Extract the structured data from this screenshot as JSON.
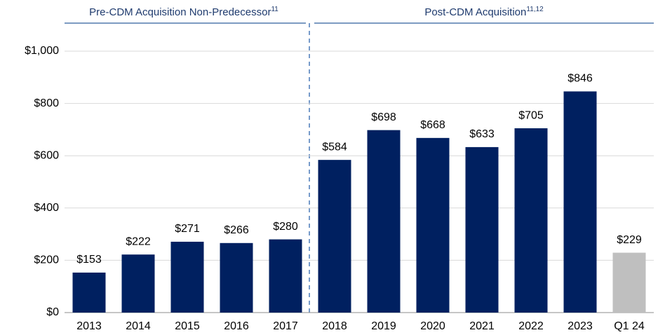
{
  "chart_data": {
    "type": "bar",
    "categories": [
      "2013",
      "2014",
      "2015",
      "2016",
      "2017",
      "2018",
      "2019",
      "2020",
      "2021",
      "2022",
      "2023",
      "Q1 24"
    ],
    "values": [
      153,
      222,
      271,
      266,
      280,
      584,
      698,
      668,
      633,
      705,
      846,
      229
    ],
    "value_labels": [
      "$153",
      "$222",
      "$271",
      "$266",
      "$280",
      "$584",
      "$698",
      "$668",
      "$633",
      "$705",
      "$846",
      "$229"
    ],
    "colors": [
      "#002060",
      "#002060",
      "#002060",
      "#002060",
      "#002060",
      "#002060",
      "#002060",
      "#002060",
      "#002060",
      "#002060",
      "#002060",
      "#bfbfbf"
    ],
    "ylim": [
      0,
      1100
    ],
    "yticks": [
      {
        "value": 0,
        "label": "$0"
      },
      {
        "value": 200,
        "label": "$200"
      },
      {
        "value": 400,
        "label": "$400"
      },
      {
        "value": 600,
        "label": "$600"
      },
      {
        "value": 800,
        "label": "$800"
      },
      {
        "value": 1000,
        "label": "$1,000"
      }
    ],
    "grid": true,
    "annotations": [
      {
        "text": "Pre-CDM Acquisition Non-Predecessor",
        "superscript": "11"
      },
      {
        "text": "Post-CDM Acquisition",
        "superscript": "11,12"
      }
    ]
  }
}
